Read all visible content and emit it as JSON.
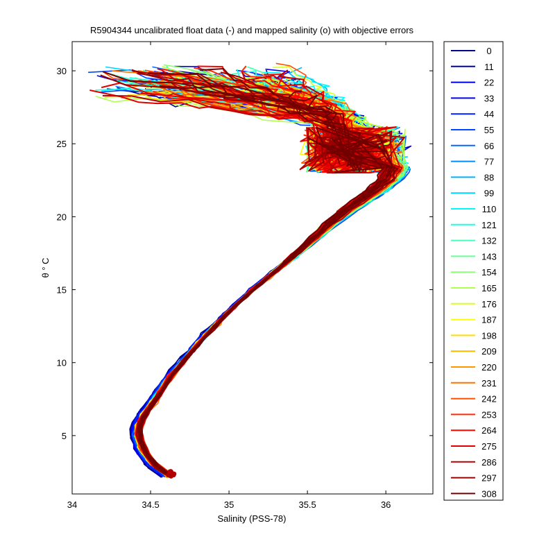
{
  "chart_data": {
    "type": "line",
    "title": "R5904344 uncalibrated float data (-) and mapped salinity (o) with objective errors",
    "xlabel": "Salinity (PSS-78)",
    "ylabel": "θ ° C",
    "xlim": [
      34,
      36.3
    ],
    "ylim": [
      1,
      32
    ],
    "x_ticks": [
      34,
      34.5,
      35,
      35.5,
      36
    ],
    "x_tick_labels": [
      "34",
      "34.5",
      "35",
      "35.5",
      "36"
    ],
    "y_ticks": [
      5,
      10,
      15,
      20,
      25,
      30
    ],
    "y_tick_labels": [
      "5",
      "10",
      "15",
      "20",
      "25",
      "30"
    ],
    "grid": false,
    "legend_position": "outside-right",
    "legend": [
      "0",
      "11",
      "22",
      "33",
      "44",
      "55",
      "66",
      "77",
      "88",
      "99",
      "110",
      "121",
      "132",
      "143",
      "154",
      "165",
      "176",
      "187",
      "198",
      "209",
      "220",
      "231",
      "242",
      "253",
      "264",
      "275",
      "286",
      "297",
      "308"
    ],
    "colors": [
      "#00008f",
      "#0000b4",
      "#0000d8",
      "#0000fd",
      "#0020ff",
      "#0045ff",
      "#0069ff",
      "#008dff",
      "#00b1ff",
      "#00d5ff",
      "#00fafa",
      "#20ffdf",
      "#45ffba",
      "#69ff96",
      "#8dff72",
      "#b1ff4e",
      "#d5ff2a",
      "#faff05",
      "#ffdf00",
      "#ffba00",
      "#ff9600",
      "#ff7200",
      "#ff4e00",
      "#ff2a00",
      "#ff0500",
      "#df0000",
      "#ba0000",
      "#960000",
      "#720000"
    ],
    "series_shape": {
      "deep_end": [
        34.62,
        2.2
      ],
      "salinity_minimum": [
        34.42,
        5.6
      ],
      "mid_thermocline": [
        [
          34.6,
          9
        ],
        [
          34.85,
          12
        ],
        [
          35.15,
          15
        ],
        [
          35.55,
          18.5
        ]
      ],
      "salinity_maximum": [
        36.1,
        23.5
      ],
      "surface_spread": [
        [
          34.2,
          29
        ],
        [
          35.4,
          29.5
        ],
        [
          35.9,
          27
        ]
      ]
    }
  }
}
